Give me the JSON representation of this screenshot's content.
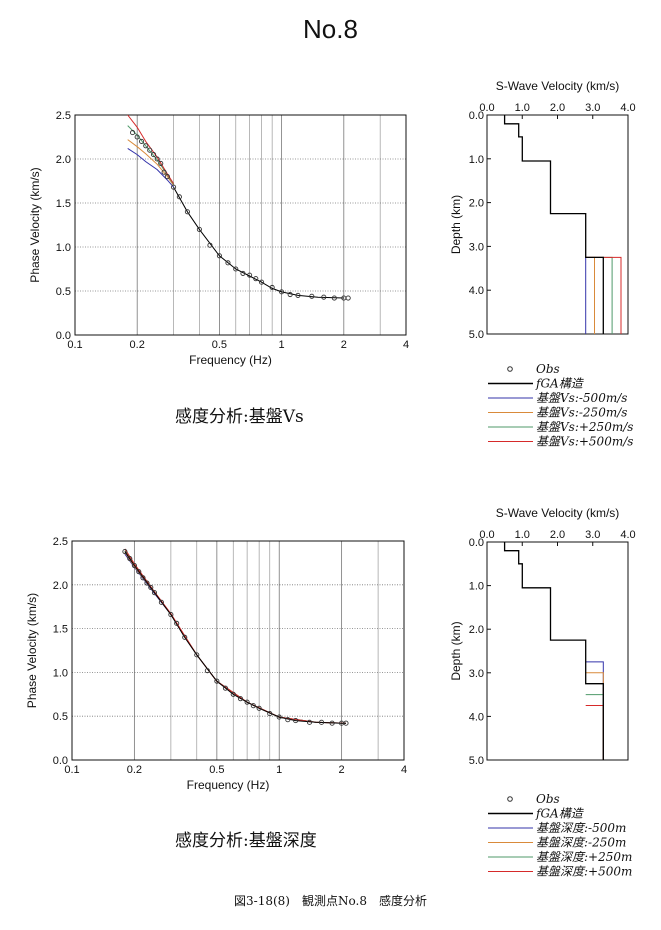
{
  "page_title": "No.8",
  "caption_top": "感度分析:基盤Vs",
  "caption_bottom": "感度分析:基盤深度",
  "figure_caption": "図3-18(8)　観測点No.8　感度分析",
  "colors": {
    "obs": "#333333",
    "fga": "#000000",
    "minus500": "#3333aa",
    "minus250": "#d98a3a",
    "plus250": "#4f9a6a",
    "plus500": "#d62a2a"
  },
  "chart_data": [
    {
      "type": "scatter",
      "id": "dispersion-vs",
      "xlabel": "Frequency (Hz)",
      "ylabel": "Phase Velocity (km/s)",
      "xscale": "log",
      "xlim": [
        0.1,
        4
      ],
      "ylim": [
        0,
        2.5
      ],
      "xticks": [
        0.1,
        0.2,
        0.5,
        1,
        2,
        4
      ],
      "xtick_labels": [
        "0.1",
        "0.2",
        "0.5",
        "1",
        "2",
        "4"
      ],
      "yticks": [
        0,
        0.5,
        1.0,
        1.5,
        2.0,
        2.5
      ],
      "ytick_labels": [
        "0.0",
        "0.5",
        "1.0",
        "1.5",
        "2.0",
        "2.5"
      ],
      "grid": true,
      "observed": {
        "name": "Obs",
        "x": [
          0.19,
          0.2,
          0.21,
          0.22,
          0.23,
          0.24,
          0.25,
          0.26,
          0.27,
          0.28,
          0.3,
          0.32,
          0.35,
          0.4,
          0.45,
          0.5,
          0.55,
          0.6,
          0.65,
          0.7,
          0.75,
          0.8,
          0.9,
          1.0,
          1.1,
          1.2,
          1.4,
          1.6,
          1.8,
          2.0,
          2.1
        ],
        "y": [
          2.3,
          2.25,
          2.2,
          2.15,
          2.1,
          2.05,
          2.0,
          1.95,
          1.85,
          1.8,
          1.68,
          1.57,
          1.4,
          1.2,
          1.02,
          0.9,
          0.82,
          0.75,
          0.7,
          0.68,
          0.64,
          0.6,
          0.54,
          0.49,
          0.46,
          0.45,
          0.44,
          0.43,
          0.42,
          0.42,
          0.42
        ]
      },
      "series": [
        {
          "name": "fGA構造",
          "color": "#000000",
          "x": [
            0.3,
            0.35,
            0.4,
            0.5,
            0.6,
            0.7,
            0.8,
            0.9,
            1.0,
            1.2,
            1.5,
            2.0
          ],
          "y": [
            1.68,
            1.4,
            1.2,
            0.9,
            0.75,
            0.67,
            0.6,
            0.53,
            0.49,
            0.45,
            0.43,
            0.42
          ]
        },
        {
          "name": "基盤Vs:-500m/s",
          "color": "#3333aa",
          "x": [
            0.18,
            0.2,
            0.22,
            0.25,
            0.28,
            0.3
          ],
          "y": [
            2.12,
            2.05,
            1.97,
            1.88,
            1.76,
            1.68
          ]
        },
        {
          "name": "基盤Vs:-250m/s",
          "color": "#d98a3a",
          "x": [
            0.18,
            0.2,
            0.22,
            0.25,
            0.28,
            0.3
          ],
          "y": [
            2.22,
            2.14,
            2.06,
            1.94,
            1.8,
            1.7
          ]
        },
        {
          "name": "基盤Vs:+250m/s",
          "color": "#4f9a6a",
          "x": [
            0.18,
            0.2,
            0.22,
            0.25,
            0.28,
            0.3
          ],
          "y": [
            2.38,
            2.27,
            2.15,
            1.99,
            1.82,
            1.71
          ]
        },
        {
          "name": "基盤Vs:+500m/s",
          "color": "#d62a2a",
          "x": [
            0.18,
            0.2,
            0.22,
            0.25,
            0.28,
            0.3
          ],
          "y": [
            2.5,
            2.36,
            2.2,
            2.02,
            1.83,
            1.72
          ]
        }
      ]
    },
    {
      "type": "line",
      "id": "profile-vs",
      "title": "S-Wave Velocity (km/s)",
      "ylabel": "Depth (km)",
      "xlim": [
        0,
        4
      ],
      "ylim": [
        0,
        5
      ],
      "xticks": [
        0,
        1,
        2,
        3,
        4
      ],
      "xtick_labels": [
        "0.0",
        "1.0",
        "2.0",
        "3.0",
        "4.0"
      ],
      "yticks": [
        0,
        1,
        2,
        3,
        4,
        5
      ],
      "ytick_labels": [
        "0.0",
        "1.0",
        "2.0",
        "3.0",
        "4.0",
        "5.0"
      ],
      "y_inverted": true,
      "series": [
        {
          "name": "fGA構造",
          "color": "#000000",
          "vs": [
            0.5,
            0.9,
            1.0,
            1.8,
            2.8,
            3.3
          ],
          "depth_top": [
            0,
            0.2,
            0.5,
            1.05,
            2.25,
            3.25
          ]
        },
        {
          "name": "基盤Vs:-500m/s",
          "color": "#3333aa",
          "vs": [
            2.8
          ],
          "depth_top": [
            3.25
          ]
        },
        {
          "name": "基盤Vs:-250m/s",
          "color": "#d98a3a",
          "vs": [
            3.05
          ],
          "depth_top": [
            3.25
          ]
        },
        {
          "name": "基盤Vs:+250m/s",
          "color": "#4f9a6a",
          "vs": [
            3.55
          ],
          "depth_top": [
            3.25
          ]
        },
        {
          "name": "基盤Vs:+500m/s",
          "color": "#d62a2a",
          "vs": [
            3.8
          ],
          "depth_top": [
            3.25
          ]
        }
      ],
      "legend": [
        "Obs",
        "fGA構造",
        "基盤Vs:-500m/s",
        "基盤Vs:-250m/s",
        "基盤Vs:+250m/s",
        "基盤Vs:+500m/s"
      ]
    },
    {
      "type": "scatter",
      "id": "dispersion-depth",
      "xlabel": "Frequency (Hz)",
      "ylabel": "Phase Velocity (km/s)",
      "xscale": "log",
      "xlim": [
        0.1,
        4
      ],
      "ylim": [
        0,
        2.5
      ],
      "xticks": [
        0.1,
        0.2,
        0.5,
        1,
        2,
        4
      ],
      "xtick_labels": [
        "0.1",
        "0.2",
        "0.5",
        "1",
        "2",
        "4"
      ],
      "yticks": [
        0,
        0.5,
        1.0,
        1.5,
        2.0,
        2.5
      ],
      "ytick_labels": [
        "0.0",
        "0.5",
        "1.0",
        "1.5",
        "2.0",
        "2.5"
      ],
      "grid": true,
      "observed": {
        "name": "Obs",
        "x": [
          0.18,
          0.19,
          0.2,
          0.21,
          0.22,
          0.23,
          0.24,
          0.25,
          0.27,
          0.3,
          0.32,
          0.35,
          0.4,
          0.45,
          0.5,
          0.55,
          0.6,
          0.65,
          0.7,
          0.75,
          0.8,
          0.9,
          1.0,
          1.1,
          1.2,
          1.4,
          1.6,
          1.8,
          2.0,
          2.1
        ],
        "y": [
          2.38,
          2.3,
          2.22,
          2.15,
          2.08,
          2.02,
          1.97,
          1.91,
          1.8,
          1.66,
          1.56,
          1.4,
          1.2,
          1.02,
          0.9,
          0.82,
          0.75,
          0.7,
          0.66,
          0.62,
          0.59,
          0.53,
          0.49,
          0.46,
          0.45,
          0.43,
          0.43,
          0.42,
          0.42,
          0.42
        ]
      },
      "series": [
        {
          "name": "fGA構造",
          "color": "#000000",
          "x": [
            0.18,
            0.2,
            0.25,
            0.3,
            0.35,
            0.4,
            0.5,
            0.6,
            0.7,
            0.8,
            1.0,
            1.2,
            1.5,
            2.0,
            2.1
          ],
          "y": [
            2.38,
            2.22,
            1.91,
            1.66,
            1.4,
            1.2,
            0.9,
            0.75,
            0.66,
            0.59,
            0.49,
            0.45,
            0.43,
            0.42,
            0.42
          ]
        },
        {
          "name": "基盤深度:-500m",
          "color": "#3333aa",
          "x": [
            0.18,
            0.2,
            0.25,
            0.3,
            0.4,
            0.5,
            0.7,
            1.0,
            1.5,
            2.1
          ],
          "y": [
            2.35,
            2.2,
            1.9,
            1.66,
            1.2,
            0.9,
            0.66,
            0.49,
            0.43,
            0.42
          ]
        },
        {
          "name": "基盤深度:-250m",
          "color": "#d98a3a",
          "x": [
            0.18,
            0.2,
            0.25,
            0.3,
            0.4,
            0.5,
            0.7,
            1.0,
            1.5,
            2.1
          ],
          "y": [
            2.37,
            2.21,
            1.91,
            1.66,
            1.2,
            0.9,
            0.66,
            0.49,
            0.43,
            0.42
          ]
        },
        {
          "name": "基盤深度:+250m",
          "color": "#4f9a6a",
          "x": [
            0.18,
            0.2,
            0.25,
            0.3,
            0.4,
            0.5,
            0.7,
            1.0,
            1.5,
            2.1
          ],
          "y": [
            2.39,
            2.23,
            1.92,
            1.66,
            1.2,
            0.9,
            0.66,
            0.49,
            0.43,
            0.42
          ]
        },
        {
          "name": "基盤深度:+500m",
          "color": "#d62a2a",
          "x": [
            0.18,
            0.2,
            0.25,
            0.3,
            0.4,
            0.5,
            0.7,
            1.0,
            1.5,
            2.1
          ],
          "y": [
            2.41,
            2.24,
            1.92,
            1.67,
            1.2,
            0.9,
            0.66,
            0.49,
            0.43,
            0.42
          ]
        }
      ]
    },
    {
      "type": "line",
      "id": "profile-depth",
      "title": "S-Wave Velocity (km/s)",
      "ylabel": "Depth (km)",
      "xlim": [
        0,
        4
      ],
      "ylim": [
        0,
        5
      ],
      "xticks": [
        0,
        1,
        2,
        3,
        4
      ],
      "xtick_labels": [
        "0.0",
        "1.0",
        "2.0",
        "3.0",
        "4.0"
      ],
      "yticks": [
        0,
        1,
        2,
        3,
        4,
        5
      ],
      "ytick_labels": [
        "0.0",
        "1.0",
        "2.0",
        "3.0",
        "4.0",
        "5.0"
      ],
      "y_inverted": true,
      "series": [
        {
          "name": "fGA構造",
          "color": "#000000",
          "vs": [
            0.5,
            0.9,
            1.0,
            1.8,
            2.8,
            3.3
          ],
          "depth_top": [
            0,
            0.2,
            0.5,
            1.05,
            2.25,
            3.25
          ]
        },
        {
          "name": "基盤深度:-500m",
          "color": "#3333aa",
          "vs": [
            3.3
          ],
          "depth_top": [
            2.75
          ]
        },
        {
          "name": "基盤深度:-250m",
          "color": "#d98a3a",
          "vs": [
            3.3
          ],
          "depth_top": [
            3.0
          ]
        },
        {
          "name": "基盤深度:+250m",
          "color": "#4f9a6a",
          "vs": [
            3.3
          ],
          "depth_top": [
            3.5
          ]
        },
        {
          "name": "基盤深度:+500m",
          "color": "#d62a2a",
          "vs": [
            3.3
          ],
          "depth_top": [
            3.75
          ]
        }
      ],
      "legend": [
        "Obs",
        "fGA構造",
        "基盤深度:-500m",
        "基盤深度:-250m",
        "基盤深度:+250m",
        "基盤深度:+500m"
      ]
    }
  ]
}
